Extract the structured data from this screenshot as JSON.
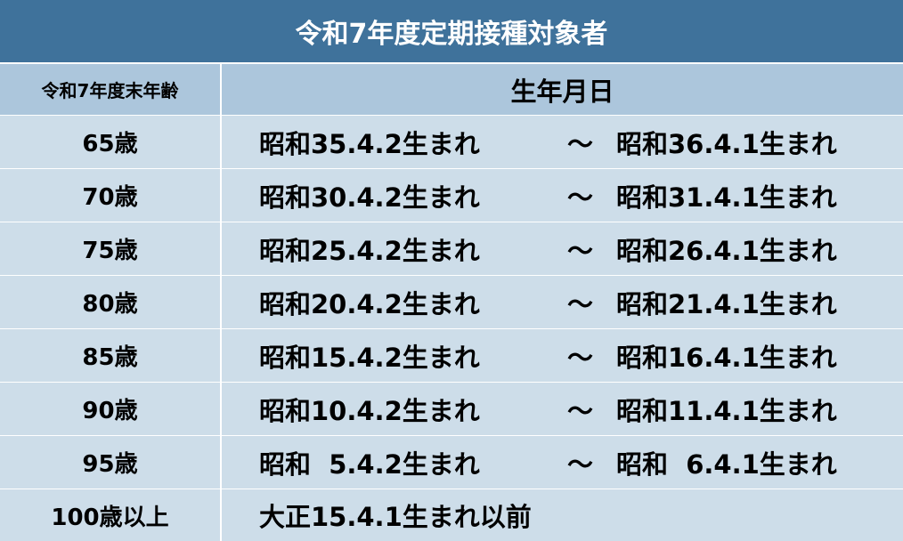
{
  "title": "令和7年度定期接種対象者",
  "headers": {
    "age": "令和7年度末年齢",
    "birth": "生年月日"
  },
  "rows": [
    {
      "age": "65歳",
      "from": "昭和35.4.2生まれ",
      "sep": "～",
      "to": "昭和36.4.1生まれ"
    },
    {
      "age": "70歳",
      "from": "昭和30.4.2生まれ",
      "sep": "～",
      "to": "昭和31.4.1生まれ"
    },
    {
      "age": "75歳",
      "from": "昭和25.4.2生まれ",
      "sep": "～",
      "to": "昭和26.4.1生まれ"
    },
    {
      "age": "80歳",
      "from": "昭和20.4.2生まれ",
      "sep": "～",
      "to": "昭和21.4.1生まれ"
    },
    {
      "age": "85歳",
      "from": "昭和15.4.2生まれ",
      "sep": "～",
      "to": "昭和16.4.1生まれ"
    },
    {
      "age": "90歳",
      "from": "昭和10.4.2生まれ",
      "sep": "～",
      "to": "昭和11.4.1生まれ"
    },
    {
      "age": "95歳",
      "from": "昭和  5.4.2生まれ",
      "sep": "～",
      "to": "昭和  6.4.1生まれ"
    }
  ],
  "last_row": {
    "age": "100歳以上",
    "from": "大正15.4.1生まれ以前"
  },
  "colors": {
    "title_bg": "#3f729b",
    "header_bg": "#acc6dc",
    "row_bg": "#cddde9"
  }
}
